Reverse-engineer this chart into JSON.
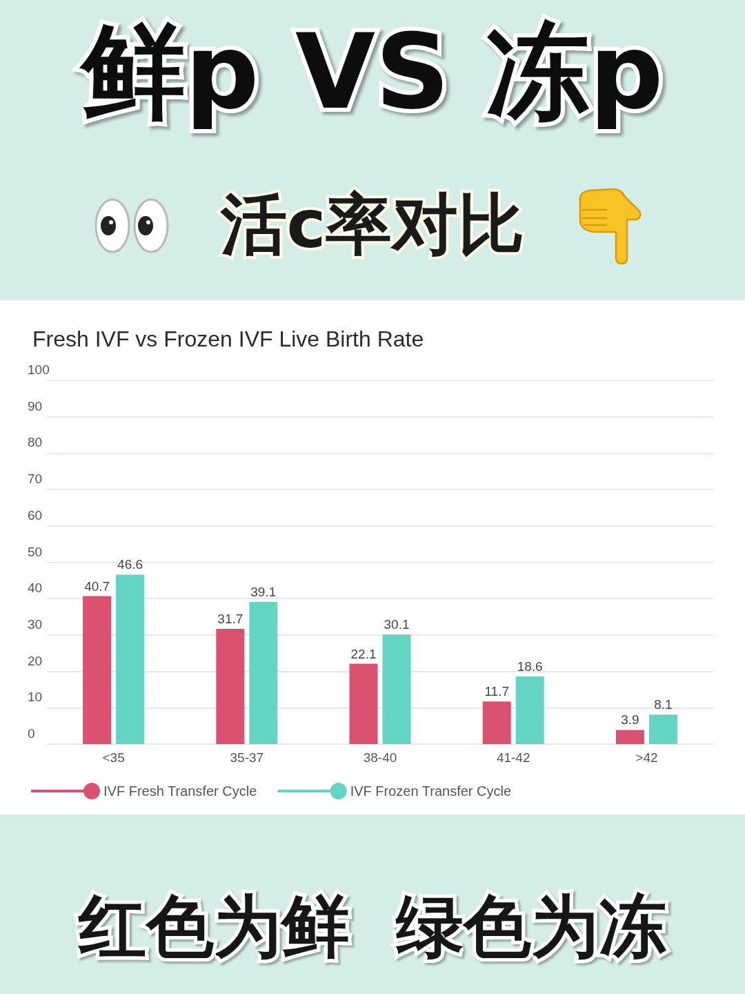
{
  "chart_data": {
    "type": "bar",
    "title": "鲜p VS 冻p",
    "subtitle": "活c率对比",
    "annotations": [
      "Fresh IVF vs Frozen IVF Live Birth Rate",
      "红色为鲜  绿色为冻"
    ],
    "categories": [
      "<35",
      "35-37",
      "38-40",
      "41-42",
      ">42"
    ],
    "series": [
      {
        "name": "IVF Fresh Transfer Cycle",
        "color": "#db5270",
        "values": [
          40.7,
          31.7,
          22.1,
          11.7,
          3.9
        ]
      },
      {
        "name": "IVF Frozen Transfer Cycle",
        "color": "#64d4c3",
        "values": [
          46.6,
          39.1,
          30.1,
          18.6,
          8.1
        ]
      }
    ],
    "ylim": [
      0,
      100
    ],
    "yticks": [
      0,
      10,
      20,
      30,
      40,
      50,
      60,
      70,
      80,
      90,
      100
    ],
    "grid": "y",
    "legend": "bottom left",
    "data_labels": true
  }
}
